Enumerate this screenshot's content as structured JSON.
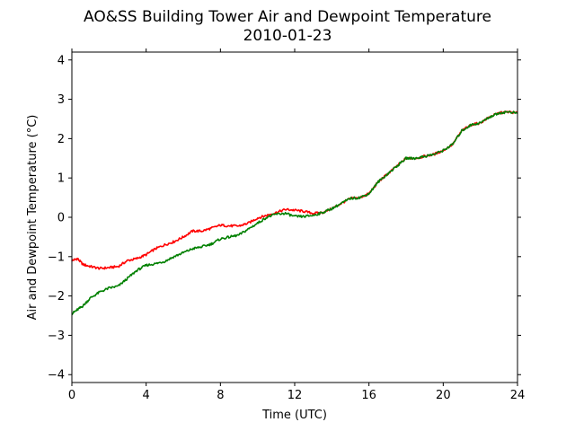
{
  "chart_data": {
    "type": "line",
    "title": "AO&SS Building Tower Air and Dewpoint Temperature",
    "subtitle": "2010-01-23",
    "xlabel": "Time (UTC)",
    "ylabel": "Air and Dewpoint Temperature (°C)",
    "xlim": [
      0,
      24
    ],
    "ylim": [
      -4.2,
      4.2
    ],
    "xticks": [
      0,
      4,
      8,
      12,
      16,
      20,
      24
    ],
    "yticks": [
      -4,
      -3,
      -2,
      -1,
      0,
      1,
      2,
      3,
      4
    ],
    "grid": false,
    "legend": "none",
    "series": [
      {
        "color": "#ff0000",
        "x": [
          0,
          0.3,
          0.6,
          1.0,
          1.5,
          2.0,
          2.5,
          3.0,
          3.5,
          4.0,
          4.5,
          5.0,
          5.5,
          6.0,
          6.5,
          7.0,
          7.5,
          8.0,
          8.5,
          9.0,
          9.5,
          10.0,
          10.5,
          11.0,
          11.5,
          12.0,
          12.5,
          13.0,
          13.5,
          14.0,
          14.5,
          15.0,
          15.5,
          16.0,
          16.5,
          17.0,
          17.5,
          18.0,
          18.5,
          19.0,
          19.5,
          20.0,
          20.5,
          21.0,
          21.5,
          22.0,
          22.5,
          23.0,
          23.5,
          24.0
        ],
        "y": [
          -1.1,
          -1.05,
          -1.2,
          -1.25,
          -1.3,
          -1.28,
          -1.25,
          -1.1,
          -1.05,
          -0.95,
          -0.8,
          -0.7,
          -0.62,
          -0.5,
          -0.35,
          -0.35,
          -0.28,
          -0.2,
          -0.22,
          -0.22,
          -0.15,
          -0.02,
          0.05,
          0.12,
          0.2,
          0.18,
          0.15,
          0.1,
          0.12,
          0.22,
          0.35,
          0.48,
          0.5,
          0.6,
          0.9,
          1.1,
          1.3,
          1.5,
          1.5,
          1.55,
          1.6,
          1.7,
          1.85,
          2.2,
          2.35,
          2.4,
          2.55,
          2.65,
          2.68,
          2.65
        ]
      },
      {
        "color": "#008000",
        "x": [
          0,
          0.3,
          0.6,
          1.0,
          1.5,
          2.0,
          2.5,
          3.0,
          3.5,
          4.0,
          4.5,
          5.0,
          5.5,
          6.0,
          6.5,
          7.0,
          7.5,
          8.0,
          8.5,
          9.0,
          9.5,
          10.0,
          10.5,
          11.0,
          11.5,
          12.0,
          12.5,
          13.0,
          13.5,
          14.0,
          14.5,
          15.0,
          15.5,
          16.0,
          16.5,
          17.0,
          17.5,
          18.0,
          18.5,
          19.0,
          19.5,
          20.0,
          20.5,
          21.0,
          21.5,
          22.0,
          22.5,
          23.0,
          23.5,
          24.0
        ],
        "y": [
          -2.45,
          -2.35,
          -2.25,
          -2.05,
          -1.9,
          -1.8,
          -1.75,
          -1.55,
          -1.35,
          -1.22,
          -1.18,
          -1.12,
          -1.0,
          -0.9,
          -0.8,
          -0.75,
          -0.68,
          -0.55,
          -0.5,
          -0.45,
          -0.3,
          -0.15,
          0.0,
          0.08,
          0.1,
          0.02,
          0.02,
          0.05,
          0.12,
          0.22,
          0.35,
          0.48,
          0.5,
          0.6,
          0.9,
          1.1,
          1.3,
          1.5,
          1.5,
          1.55,
          1.6,
          1.7,
          1.85,
          2.2,
          2.35,
          2.4,
          2.55,
          2.65,
          2.68,
          2.65
        ]
      }
    ]
  }
}
